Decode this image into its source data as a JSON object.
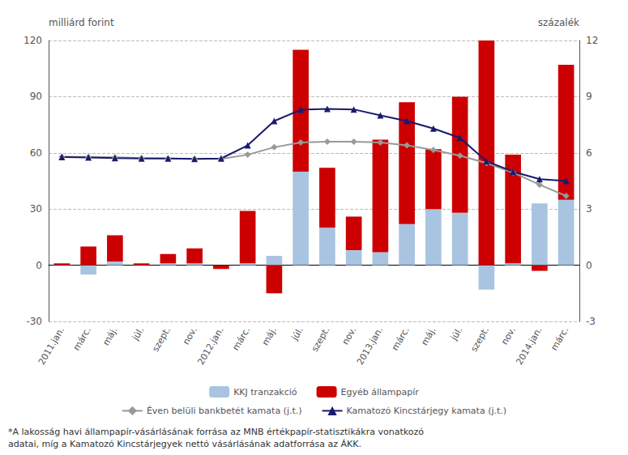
{
  "chart_data": {
    "type": "bar",
    "ylabel": "milliárd forint",
    "y2label": "százalék",
    "categories": [
      "2011.jan.",
      "márc.",
      "máj.",
      "júl.",
      "szept.",
      "nov.",
      "2012.jan.",
      "márc.",
      "máj.",
      "júl.",
      "szept.",
      "nov.",
      "2013.jan.",
      "márc.",
      "máj.",
      "júl.",
      "szept.",
      "nov.",
      "2014.jan.",
      "márc."
    ],
    "series": [
      {
        "name": "KKJ tranzakció",
        "type": "bar",
        "color": "#a8c4e0",
        "values": [
          0,
          -5,
          2,
          0,
          1,
          1,
          0,
          1,
          5,
          50,
          20,
          8,
          7,
          22,
          30,
          28,
          -13,
          1,
          33,
          35
        ]
      },
      {
        "name": "Egyéb állampapír",
        "type": "bar",
        "color": "#cc0000",
        "values": [
          1,
          10,
          14,
          1,
          5,
          8,
          -2,
          28,
          -15,
          65,
          32,
          18,
          60,
          65,
          32,
          62,
          120,
          58,
          -3,
          72
        ]
      },
      {
        "name": "Éven belüli bankbetét kamata (j.t.)",
        "type": "line",
        "axis": "y2",
        "color": "#999999",
        "marker": "diamond",
        "values": [
          5.8,
          5.78,
          5.76,
          5.72,
          5.7,
          5.68,
          5.68,
          5.9,
          6.3,
          6.55,
          6.6,
          6.6,
          6.55,
          6.4,
          6.15,
          5.85,
          5.45,
          4.95,
          4.3,
          3.7
        ]
      },
      {
        "name": "Kamatozó Kincstárjegy kamata (j.t.)",
        "type": "line",
        "axis": "y2",
        "color": "#1a1a6e",
        "marker": "triangle",
        "values": [
          5.78,
          5.75,
          5.72,
          5.7,
          5.7,
          5.68,
          5.7,
          6.4,
          7.7,
          8.3,
          8.35,
          8.32,
          8.0,
          7.7,
          7.3,
          6.8,
          5.55,
          5.0,
          4.6,
          4.5
        ]
      }
    ],
    "stacked": true,
    "ylim": [
      -30,
      120
    ],
    "yticks": [
      -30,
      0,
      30,
      60,
      90,
      120
    ],
    "y2lim": [
      -3,
      12
    ],
    "y2ticks": [
      -3,
      0,
      3,
      6,
      9,
      12
    ],
    "grid": true,
    "legend": "bottom",
    "annotations": [
      "*A lakosság havi állampapír-vásárlásának forrása az MNB értékpapír-statisztikákra vonatkozó\nadatai, míg a Kamatozó Kincstárjegyek nettó vásárlásának adatforrása az ÁKK."
    ]
  }
}
